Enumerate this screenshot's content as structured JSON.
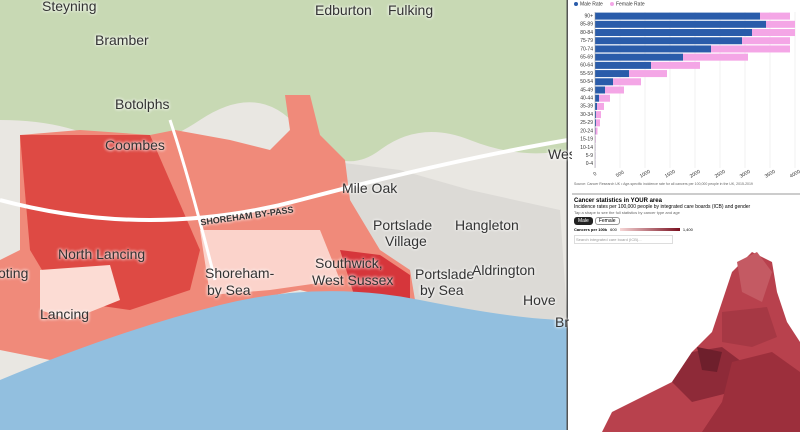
{
  "map": {
    "labels": [
      "Steyning",
      "Edburton",
      "Fulking",
      "Bramber",
      "Botolphs",
      "Coombes",
      "Mile Oak",
      "SHOREHAM BY-PASS",
      "Portslade",
      "Village",
      "Hangleton",
      "North Lancing",
      "Shoreham-",
      "by Sea",
      "Southwick,",
      "West Sussex",
      "Portslade",
      "by Sea",
      "Aldrington",
      "Hove",
      "Lancing",
      "Wes",
      "oting",
      "Br"
    ]
  },
  "chart_data": {
    "type": "bar",
    "stacked": true,
    "orientation": "horizontal",
    "categories": [
      "90+",
      "85-89",
      "80-84",
      "75-79",
      "70-74",
      "65-69",
      "60-64",
      "55-59",
      "50-54",
      "45-49",
      "40-44",
      "35-39",
      "30-34",
      "25-29",
      "20-24",
      "15-19",
      "10-14",
      "5-9",
      "0-4"
    ],
    "series": [
      {
        "name": "Male Rate",
        "color": "#2a5caa",
        "values": [
          3300,
          3420,
          3140,
          2940,
          2320,
          1760,
          1120,
          680,
          360,
          200,
          80,
          40,
          20,
          20,
          10,
          5,
          5,
          5,
          5
        ]
      },
      {
        "name": "Female Rate",
        "color": "#f4a6e6",
        "values": [
          600,
          580,
          860,
          960,
          1580,
          1300,
          980,
          760,
          560,
          380,
          220,
          140,
          100,
          80,
          40,
          10,
          5,
          5,
          5
        ]
      }
    ],
    "xlim": [
      0,
      4000
    ],
    "xticks": [
      0,
      500,
      1000,
      1500,
      2000,
      2500,
      3000,
      3500,
      4000
    ],
    "source": "Source: Cancer Research UK • Age-specific incidence rate for all cancers per 100,000 people in the UK, 2015-2019"
  },
  "panel": {
    "title": "Cancer statistics in YOUR area",
    "subtitle": "Incidence rates per 100,000 people by integrated care boards (ICB) and gender",
    "hint": "Tap a shape to see the full statistics by cancer type and age",
    "buttons": [
      "Male",
      "Female"
    ],
    "scale_label": "Cancers per 100k",
    "scale_min": "600",
    "scale_max": "1,400",
    "search": "Search integrated care board (ICB)..."
  }
}
